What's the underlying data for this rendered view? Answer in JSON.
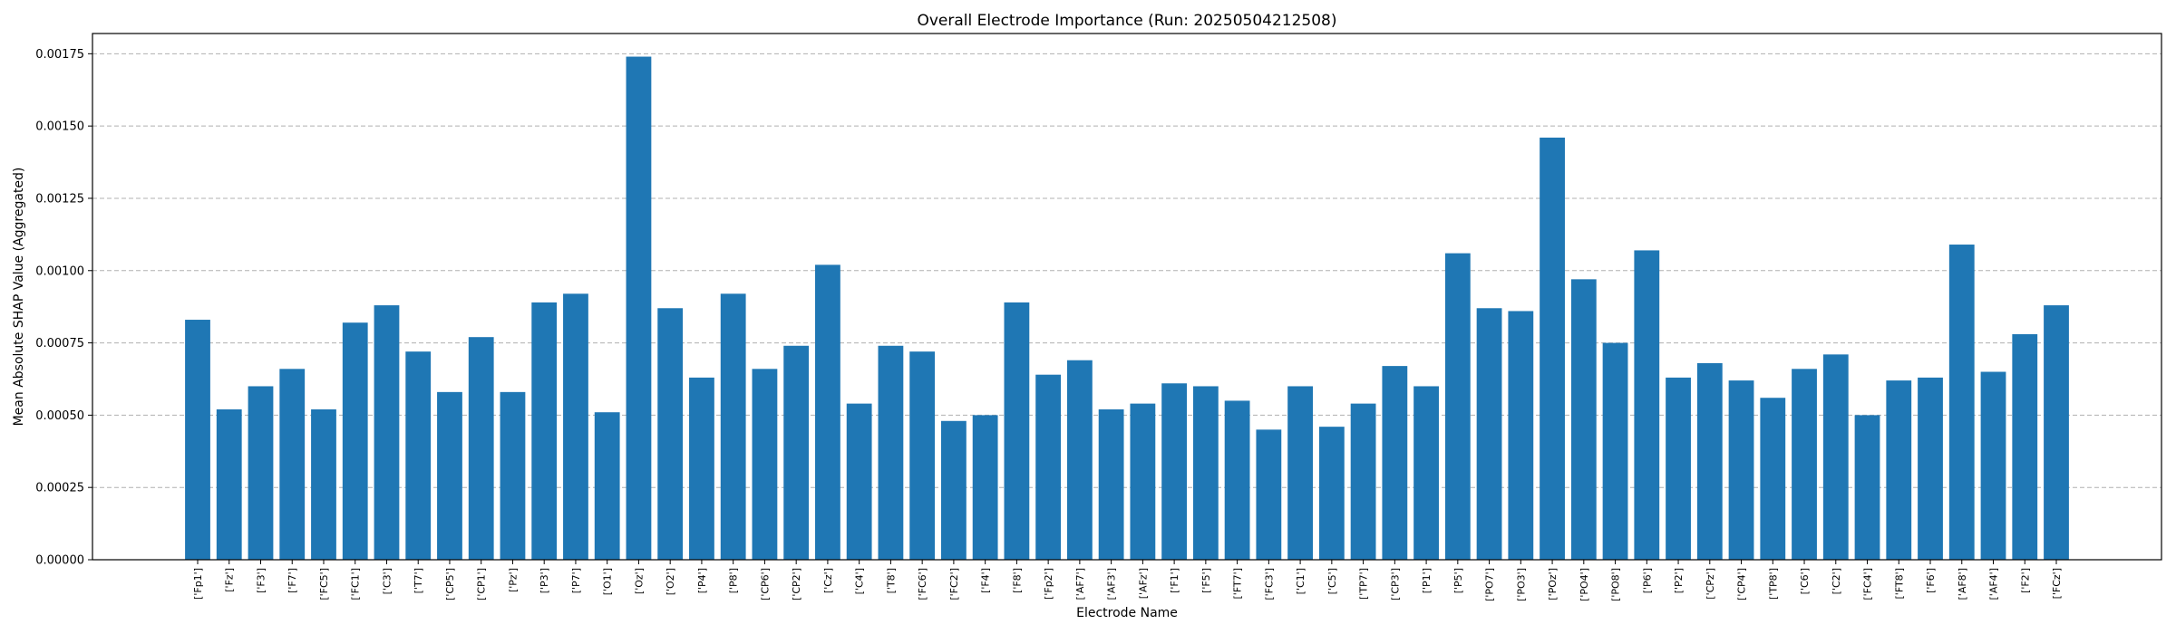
{
  "chart_data": {
    "type": "bar",
    "title": "Overall Electrode Importance (Run: 20250504212508)",
    "xlabel": "Electrode Name",
    "ylabel": "Mean Absolute SHAP Value (Aggregated)",
    "ylim": [
      0,
      0.00182
    ],
    "yticks": [
      "0.00000",
      "0.00025",
      "0.00050",
      "0.00075",
      "0.00100",
      "0.00125",
      "0.00150",
      "0.00175"
    ],
    "ytick_values": [
      0,
      0.00025,
      0.0005,
      0.00075,
      0.001,
      0.00125,
      0.0015,
      0.00175
    ],
    "grid": "y-dashed",
    "bar_color": "#1f77b4",
    "categories": [
      "['Fp1']",
      "['Fz']",
      "['F3']",
      "['F7']",
      "['FC5']",
      "['FC1']",
      "['C3']",
      "['T7']",
      "['CP5']",
      "['CP1']",
      "['Pz']",
      "['P3']",
      "['P7']",
      "['O1']",
      "['Oz']",
      "['O2']",
      "['P4']",
      "['P8']",
      "['CP6']",
      "['CP2']",
      "['Cz']",
      "['C4']",
      "['T8']",
      "['FC6']",
      "['FC2']",
      "['F4']",
      "['F8']",
      "['Fp2']",
      "['AF7']",
      "['AF3']",
      "['AFz']",
      "['F1']",
      "['F5']",
      "['FT7']",
      "['FC3']",
      "['C1']",
      "['C5']",
      "['TP7']",
      "['CP3']",
      "['P1']",
      "['P5']",
      "['PO7']",
      "['PO3']",
      "['POz']",
      "['PO4']",
      "['PO8']",
      "['P6']",
      "['P2']",
      "['CPz']",
      "['CP4']",
      "['TP8']",
      "['C6']",
      "['C2']",
      "['FC4']",
      "['FT8']",
      "['F6']",
      "['AF8']",
      "['AF4']",
      "['F2']",
      "['FCz']"
    ],
    "values": [
      0.00083,
      0.00052,
      0.0006,
      0.00066,
      0.00052,
      0.00082,
      0.00088,
      0.00072,
      0.00058,
      0.00077,
      0.00058,
      0.00089,
      0.00092,
      0.00051,
      0.00174,
      0.00087,
      0.00063,
      0.00092,
      0.00066,
      0.00074,
      0.00102,
      0.00054,
      0.00074,
      0.00072,
      0.00048,
      0.0005,
      0.00089,
      0.00064,
      0.00069,
      0.00052,
      0.00054,
      0.00061,
      0.0006,
      0.00055,
      0.00045,
      0.0006,
      0.00046,
      0.00054,
      0.00067,
      0.0006,
      0.00106,
      0.00087,
      0.00086,
      0.00146,
      0.00097,
      0.00075,
      0.00107,
      0.00063,
      0.00068,
      0.00062,
      0.00056,
      0.00066,
      0.00071,
      0.0005,
      0.00062,
      0.00063,
      0.00109,
      0.00065,
      0.00078,
      0.00088
    ]
  }
}
